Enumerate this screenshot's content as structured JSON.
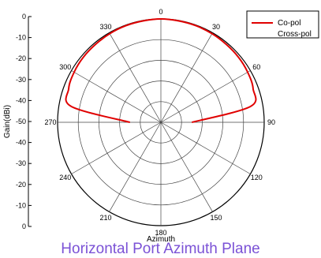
{
  "chart_data": {
    "type": "polar",
    "ylabel": "Gain(dBi)",
    "xlabel": "Azimuth",
    "angle_ticks": [
      "0",
      "30",
      "60",
      "90",
      "120",
      "150",
      "180",
      "210",
      "240",
      "270",
      "300",
      "330"
    ],
    "gain_ticks": [
      "0",
      "-10",
      "-20",
      "-30",
      "-40",
      "-50",
      "-40",
      "-30",
      "-20",
      "-10",
      "0"
    ],
    "rlim": [
      -50,
      0
    ],
    "grid": true,
    "legend_position": "top-right",
    "series": [
      {
        "name": "Co-pol",
        "color": "#e00000",
        "azimuth": [
          -90,
          -80,
          -70,
          -60,
          -50,
          -40,
          -30,
          -20,
          -10,
          0,
          10,
          20,
          30,
          40,
          50,
          60,
          70,
          80,
          90
        ],
        "gain": [
          -35,
          -6,
          -2.5,
          -1.5,
          -1,
          -0.8,
          -0.5,
          -0.3,
          -0.2,
          0,
          -0.2,
          -0.3,
          -0.5,
          -0.8,
          -1,
          -1.5,
          -2.5,
          -6,
          -35
        ]
      },
      {
        "name": "Cross-pol",
        "color": "#ffffff",
        "azimuth": [],
        "gain": []
      }
    ]
  },
  "caption": "Horizontal Port Azimuth Plane"
}
